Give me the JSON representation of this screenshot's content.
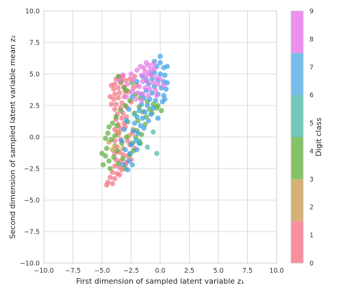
{
  "chart_data": {
    "type": "scatter",
    "xlabel": "First dimension of sampled latent variable z₁",
    "ylabel": "Second dimension of sampled latent variable mean z₂",
    "xlim": [
      -10,
      10
    ],
    "ylim": [
      -10,
      10
    ],
    "xticks": [
      "−10.0",
      "−7.5",
      "−5.0",
      "−2.5",
      "0.0",
      "2.5",
      "5.0",
      "7.5",
      "10.0"
    ],
    "yticks": [
      "−10.0",
      "−7.5",
      "−5.0",
      "−2.5",
      "0.0",
      "2.5",
      "5.0",
      "7.5",
      "10.0"
    ],
    "grid": true,
    "colorbar": {
      "label": "Digit class",
      "ticks": [
        "0",
        "1",
        "2",
        "3",
        "4",
        "5",
        "6",
        "7",
        "8",
        "9"
      ],
      "colors": [
        "#f8909f",
        "#f8909f",
        "#d3b177",
        "#d3b177",
        "#86c26a",
        "#86c26a",
        "#72c7ba",
        "#72c7ba",
        "#76bdee",
        "#76bdee",
        "#ee8fef"
      ]
    },
    "series": [
      {
        "class_range": "0-1",
        "color": "#f07684",
        "points": [
          [
            -3.8,
            4.6
          ],
          [
            -3.5,
            4.8
          ],
          [
            -3.2,
            4.9
          ],
          [
            -3.9,
            4.2
          ],
          [
            -3.4,
            4.3
          ],
          [
            -3.0,
            4.5
          ],
          [
            -4.0,
            3.8
          ],
          [
            -3.6,
            3.9
          ],
          [
            -3.1,
            4.0
          ],
          [
            -3.9,
            3.4
          ],
          [
            -3.5,
            3.5
          ],
          [
            -3.0,
            3.6
          ],
          [
            -4.0,
            3.0
          ],
          [
            -3.6,
            3.1
          ],
          [
            -3.1,
            3.2
          ],
          [
            -3.8,
            2.6
          ],
          [
            -3.3,
            2.7
          ],
          [
            -3.9,
            2.2
          ],
          [
            -3.4,
            2.3
          ],
          [
            -2.9,
            2.4
          ],
          [
            -3.7,
            1.8
          ],
          [
            -3.2,
            1.9
          ],
          [
            -3.8,
            1.4
          ],
          [
            -3.3,
            1.5
          ],
          [
            -3.6,
            1.0
          ],
          [
            -3.1,
            1.1
          ],
          [
            -3.9,
            0.6
          ],
          [
            -3.4,
            0.7
          ],
          [
            -3.6,
            0.2
          ],
          [
            -3.9,
            -0.3
          ],
          [
            -3.4,
            -0.2
          ],
          [
            -3.7,
            -0.8
          ],
          [
            -3.9,
            -1.3
          ],
          [
            -3.5,
            -1.2
          ],
          [
            -3.8,
            -1.8
          ],
          [
            -3.4,
            -1.9
          ],
          [
            -3.9,
            -2.3
          ],
          [
            -3.5,
            -2.4
          ],
          [
            -3.0,
            -2.2
          ],
          [
            -4.1,
            -2.8
          ],
          [
            -3.7,
            -2.9
          ],
          [
            -3.3,
            -2.6
          ],
          [
            -4.3,
            -3.2
          ],
          [
            -3.9,
            -3.3
          ],
          [
            -4.5,
            -3.6
          ],
          [
            -4.1,
            -3.7
          ],
          [
            -4.6,
            -3.8
          ],
          [
            -3.5,
            -3.0
          ],
          [
            -2.8,
            -1.5
          ],
          [
            -2.6,
            -0.6
          ],
          [
            -2.4,
            0.3
          ],
          [
            -2.2,
            -0.9
          ],
          [
            -2.9,
            1.6
          ],
          [
            -2.5,
            2.8
          ],
          [
            -2.7,
            3.6
          ],
          [
            -2.3,
            3.9
          ],
          [
            -2.0,
            4.1
          ],
          [
            -2.6,
            4.6
          ],
          [
            -2.2,
            4.8
          ],
          [
            -3.3,
            4.7
          ],
          [
            -4.2,
            2.6
          ],
          [
            -4.3,
            3.2
          ],
          [
            -4.2,
            4.1
          ],
          [
            -3.7,
            0.4
          ],
          [
            -3.0,
            0.8
          ],
          [
            -2.8,
            -0.3
          ],
          [
            -3.2,
            -1.4
          ],
          [
            -2.9,
            -2.0
          ],
          [
            -2.5,
            -1.8
          ]
        ]
      },
      {
        "class_range": "2-3",
        "color": "#c99e52",
        "points": [
          [
            -4.1,
            -1.0
          ],
          [
            -3.9,
            -0.7
          ],
          [
            -4.4,
            -0.4
          ],
          [
            -3.2,
            -0.9
          ],
          [
            -2.7,
            0.1
          ],
          [
            -3.5,
            0.4
          ],
          [
            -2.3,
            0.6
          ]
        ]
      },
      {
        "class_range": "4-5",
        "color": "#5fae3f",
        "points": [
          [
            -5.0,
            -1.3
          ],
          [
            -4.7,
            -1.5
          ],
          [
            -4.9,
            -2.2
          ],
          [
            -4.4,
            -1.9
          ],
          [
            -4.6,
            -0.9
          ],
          [
            -4.2,
            -0.2
          ],
          [
            -4.5,
            0.3
          ],
          [
            -4.0,
            -1.6
          ],
          [
            -3.7,
            -1.1
          ],
          [
            -4.1,
            1.1
          ],
          [
            -3.8,
            1.6
          ],
          [
            -3.4,
            2.1
          ],
          [
            -3.0,
            2.5
          ],
          [
            -2.6,
            2.9
          ],
          [
            -2.2,
            1.9
          ],
          [
            -1.8,
            2.4
          ],
          [
            -1.5,
            2.0
          ],
          [
            -1.2,
            1.6
          ],
          [
            -0.9,
            2.2
          ],
          [
            -0.6,
            2.6
          ],
          [
            -0.3,
            2.3
          ],
          [
            -2.9,
            0.0
          ],
          [
            -2.4,
            -0.5
          ],
          [
            -2.0,
            0.5
          ],
          [
            -1.6,
            0.2
          ],
          [
            -3.3,
            -0.5
          ],
          [
            -3.7,
            0.9
          ],
          [
            -2.8,
            1.2
          ],
          [
            -1.9,
            1.3
          ],
          [
            -1.3,
            1.0
          ],
          [
            -4.3,
            -2.5
          ],
          [
            -3.6,
            -2.1
          ],
          [
            -2.6,
            -1.4
          ],
          [
            -3.2,
            -1.7
          ],
          [
            -2.1,
            0.0
          ],
          [
            -1.7,
            -0.5
          ],
          [
            -3.9,
            0.1
          ],
          [
            -3.4,
            4.4
          ],
          [
            -2.9,
            3.7
          ],
          [
            -2.4,
            4.3
          ],
          [
            -2.1,
            3.4
          ],
          [
            -3.6,
            4.8
          ],
          [
            -3.1,
            3.9
          ],
          [
            -1.7,
            3.1
          ],
          [
            -1.1,
            2.8
          ],
          [
            -0.7,
            1.9
          ],
          [
            -0.2,
            2.5
          ],
          [
            0.1,
            2.1
          ],
          [
            -4.7,
            -0.1
          ],
          [
            -4.4,
            0.8
          ],
          [
            -3.0,
            -2.5
          ],
          [
            -2.3,
            -1.1
          ]
        ]
      },
      {
        "class_range": "6-7",
        "color": "#3d9fe8",
        "points": [
          [
            0.0,
            5.9
          ],
          [
            -0.3,
            5.6
          ],
          [
            0.3,
            5.5
          ],
          [
            -0.5,
            5.1
          ],
          [
            0.0,
            5.0
          ],
          [
            0.4,
            4.9
          ],
          [
            -0.7,
            4.6
          ],
          [
            -0.2,
            4.5
          ],
          [
            0.3,
            4.4
          ],
          [
            -1.0,
            4.2
          ],
          [
            -0.5,
            4.0
          ],
          [
            0.1,
            3.9
          ],
          [
            0.5,
            3.8
          ],
          [
            -1.2,
            3.7
          ],
          [
            -0.7,
            3.5
          ],
          [
            -0.2,
            3.4
          ],
          [
            0.3,
            3.3
          ],
          [
            -1.4,
            3.1
          ],
          [
            -0.9,
            3.0
          ],
          [
            -0.4,
            2.9
          ],
          [
            0.2,
            2.8
          ],
          [
            -1.6,
            2.6
          ],
          [
            -1.1,
            2.5
          ],
          [
            -0.6,
            2.3
          ],
          [
            -1.8,
            2.1
          ],
          [
            -1.3,
            2.0
          ],
          [
            -2.0,
            1.6
          ],
          [
            -1.5,
            1.5
          ],
          [
            -1.0,
            1.3
          ],
          [
            -2.2,
            1.1
          ],
          [
            -1.7,
            0.9
          ],
          [
            -2.3,
            0.5
          ],
          [
            -1.9,
            0.3
          ],
          [
            -2.1,
            -0.3
          ],
          [
            -2.5,
            -0.6
          ],
          [
            -2.0,
            -1.0
          ],
          [
            -2.6,
            -1.3
          ],
          [
            -2.7,
            -1.9
          ],
          [
            -2.4,
            -2.2
          ],
          [
            -1.8,
            -0.5
          ],
          [
            -1.4,
            0.7
          ],
          [
            -0.8,
            1.8
          ],
          [
            -1.6,
            3.4
          ],
          [
            -2.0,
            4.4
          ],
          [
            -1.5,
            4.8
          ],
          [
            -2.4,
            3.2
          ],
          [
            -2.7,
            2.2
          ],
          [
            -2.9,
            1.3
          ],
          [
            -3.1,
            0.6
          ],
          [
            -3.3,
            -0.3
          ],
          [
            -3.0,
            -1.0
          ],
          [
            -2.8,
            -2.6
          ],
          [
            -3.2,
            -2.2
          ],
          [
            -1.2,
            4.5
          ],
          [
            -0.8,
            5.0
          ],
          [
            -0.5,
            6.0
          ],
          [
            0.0,
            6.4
          ],
          [
            0.6,
            5.6
          ],
          [
            -0.2,
            1.5
          ],
          [
            0.4,
            3.0
          ],
          [
            0.6,
            4.3
          ]
        ]
      },
      {
        "class_range": "6-7 teal",
        "color": "#4fb8aa",
        "points": [
          [
            -0.6,
            0.4
          ],
          [
            -1.8,
            -0.3
          ],
          [
            -0.3,
            -1.3
          ],
          [
            -1.1,
            -0.8
          ],
          [
            -2.2,
            1.8
          ]
        ]
      },
      {
        "class_range": "8-9",
        "color": "#e77ae8",
        "points": [
          [
            -1.2,
            5.9
          ],
          [
            -1.0,
            5.7
          ],
          [
            -1.4,
            5.5
          ],
          [
            -0.6,
            5.8
          ],
          [
            -0.8,
            5.4
          ],
          [
            -1.3,
            5.2
          ],
          [
            -1.0,
            5.1
          ],
          [
            -0.5,
            5.4
          ],
          [
            -1.6,
            4.9
          ],
          [
            -1.2,
            4.8
          ],
          [
            -0.7,
            4.9
          ],
          [
            -0.3,
            4.7
          ],
          [
            -1.5,
            4.4
          ],
          [
            -1.1,
            4.4
          ],
          [
            -0.6,
            4.3
          ],
          [
            -0.2,
            4.2
          ],
          [
            -1.8,
            4.0
          ],
          [
            -1.3,
            3.9
          ],
          [
            -0.9,
            3.8
          ],
          [
            -0.4,
            3.7
          ],
          [
            -1.9,
            3.5
          ],
          [
            -1.5,
            3.4
          ],
          [
            -1.0,
            3.3
          ],
          [
            -2.1,
            3.0
          ],
          [
            -1.6,
            2.9
          ],
          [
            -2.3,
            4.5
          ],
          [
            -2.5,
            5.0
          ],
          [
            -2.0,
            5.3
          ],
          [
            -3.2,
            4.9
          ],
          [
            -3.5,
            4.5
          ],
          [
            -2.8,
            4.2
          ],
          [
            0.0,
            4.6
          ],
          [
            0.3,
            4.1
          ],
          [
            -0.3,
            3.3
          ],
          [
            -2.4,
            3.6
          ],
          [
            -2.9,
            3.2
          ],
          [
            -1.7,
            5.6
          ]
        ]
      }
    ]
  }
}
